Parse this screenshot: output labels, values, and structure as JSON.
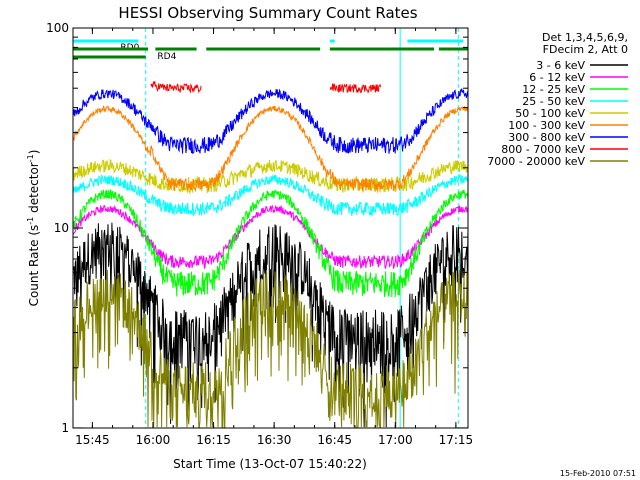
{
  "chart_data": {
    "type": "line",
    "title": "HESSI Observing Summary Count Rates",
    "xlabel": "Start Time (13-Oct-07 15:40:22)",
    "ylabel_main": "Count Rate (s",
    "ylabel_sup1": "-1",
    "ylabel_mid": " detector",
    "ylabel_sup2": "-1",
    "ylabel_end": ")",
    "y_scale": "log",
    "ylim": [
      1,
      100
    ],
    "xlim_min": [
      15.67,
      17.3
    ],
    "x_ticks": [
      {
        "value": 15.75,
        "label": "15:45"
      },
      {
        "value": 16.0,
        "label": "16:00"
      },
      {
        "value": 16.25,
        "label": "16:15"
      },
      {
        "value": 16.5,
        "label": "16:30"
      },
      {
        "value": 16.75,
        "label": "16:45"
      },
      {
        "value": 17.0,
        "label": "17:00"
      },
      {
        "value": 17.25,
        "label": "17:15"
      }
    ],
    "y_ticks": [
      {
        "value": 1,
        "label": "1"
      },
      {
        "value": 10,
        "label": "10"
      },
      {
        "value": 100,
        "label": "100"
      }
    ],
    "legend_header": [
      "Det 1,3,4,5,6,9,",
      "FDecim 2, Att 0"
    ],
    "legend_placement": "right-outside",
    "series": [
      {
        "name": "3 - 6 keV",
        "color": "#000000",
        "base": 3.0,
        "amp": 5.3,
        "day": 1.0,
        "noise": 1.6,
        "noisy": true
      },
      {
        "name": "6 - 12 keV",
        "color": "#ff00ff",
        "base": 6.8,
        "amp": 6.0,
        "day": 0.95,
        "noise": 0.5
      },
      {
        "name": "12 - 25 keV",
        "color": "#00ff00",
        "base": 5.3,
        "amp": 10.0,
        "day": 0.95,
        "noise": 0.8
      },
      {
        "name": "25 - 50 keV",
        "color": "#00ffff",
        "base": 12.5,
        "amp": 5.5,
        "day": 0.9,
        "noise": 1.0
      },
      {
        "name": "50 - 100 keV",
        "color": "#cccc00",
        "base": 16.5,
        "amp": 4.0,
        "day": 1.0,
        "noise": 1.5
      },
      {
        "name": "100 - 300 keV",
        "color": "#ff8000",
        "base": 16.5,
        "amp": 32.0,
        "day": 0.72,
        "noise": 1.2
      },
      {
        "name": "300 - 800 keV",
        "color": "#0000ff",
        "base": 26.0,
        "amp": 27.0,
        "day": 0.78,
        "noise": 2.5
      },
      {
        "name": "800 - 7000 keV",
        "color": "#ff0000",
        "base": 50.0,
        "amp": 8.0,
        "day": 1.0,
        "noise": 2.5,
        "only_night": true
      },
      {
        "name": "7000 - 20000 keV",
        "color": "#808000",
        "base": 1.6,
        "amp": 3.3,
        "day": 1.0,
        "noise": 0.9,
        "noisy": true
      }
    ],
    "night_intervals": [
      [
        15.99,
        16.2
      ],
      [
        16.73,
        16.94
      ]
    ],
    "peaks": [
      15.81,
      16.5,
      17.28
    ],
    "valley_halfwidth": 0.28,
    "saa_lines": [
      15.97,
      17.02,
      17.26
    ],
    "flags": [
      {
        "label": "RD0",
        "color": "#00ffff",
        "level": 1,
        "segments": [
          [
            15.67,
            15.94
          ],
          [
            16.73,
            16.75
          ],
          [
            17.05,
            17.28
          ]
        ]
      },
      {
        "label": "RD4",
        "color": "#008000",
        "level": 2,
        "segments": [
          [
            15.67,
            15.98
          ],
          [
            16.01,
            16.18
          ],
          [
            16.22,
            16.69
          ],
          [
            16.73,
            17.16
          ],
          [
            17.18,
            17.3
          ]
        ]
      },
      {
        "label": "",
        "color": "#008000",
        "level": 3,
        "segments": [
          [
            15.67,
            15.97
          ]
        ]
      }
    ],
    "grid": false
  },
  "timestamp": "15-Feb-2010 07:51"
}
